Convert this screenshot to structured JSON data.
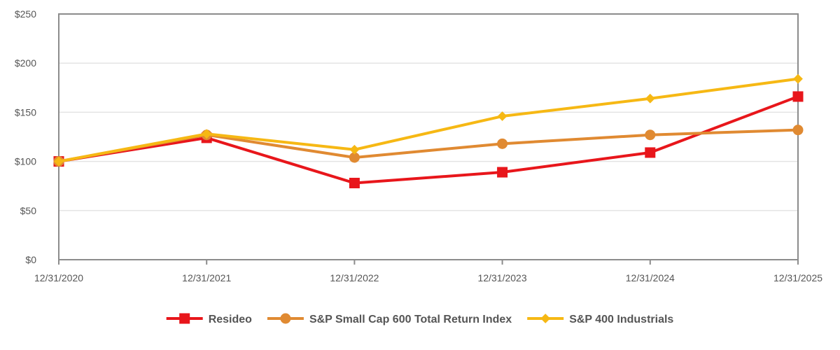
{
  "chart_data": {
    "type": "line",
    "title": "",
    "xlabel": "",
    "ylabel": "",
    "categories": [
      "12/31/2020",
      "12/31/2021",
      "12/31/2022",
      "12/31/2023",
      "12/31/2024",
      "12/31/2025"
    ],
    "ylim": [
      0,
      250
    ],
    "yticks": [
      0,
      50,
      100,
      150,
      200,
      250
    ],
    "ytick_labels": [
      "$0",
      "$50",
      "$100",
      "$150",
      "$200",
      "$250"
    ],
    "grid": "horizontal",
    "legend_position": "bottom",
    "series": [
      {
        "name": "Resideo",
        "marker": "square",
        "color": "#e8161b",
        "values": [
          100,
          124,
          78,
          89,
          109,
          166
        ]
      },
      {
        "name": "S&P Small Cap 600 Total Return Index",
        "marker": "circle",
        "color": "#e08a32",
        "values": [
          100,
          127,
          104,
          118,
          127,
          132
        ]
      },
      {
        "name": "S&P 400 Industrials",
        "marker": "diamond",
        "color": "#f6b814",
        "values": [
          100,
          128,
          112,
          146,
          164,
          184
        ]
      }
    ]
  }
}
